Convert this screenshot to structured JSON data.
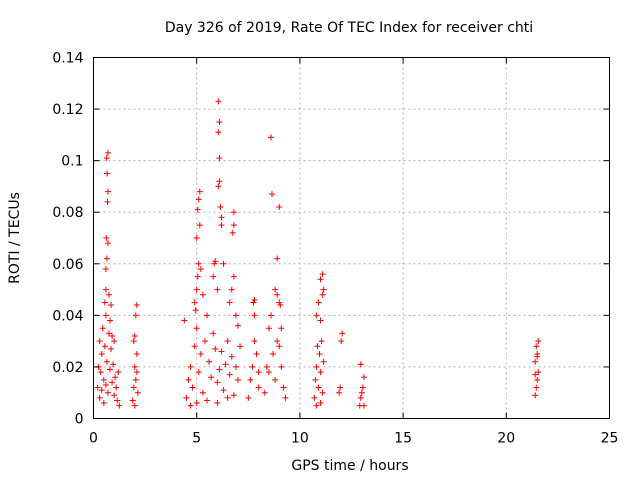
{
  "chart_data": {
    "type": "scatter",
    "title": "Day 326 of 2019, Rate Of TEC Index for receiver chti",
    "xlabel": "GPS time / hours",
    "ylabel": "ROTI / TECUs",
    "xlim": [
      0,
      25
    ],
    "ylim": [
      0,
      0.14
    ],
    "xticks": [
      0,
      5,
      10,
      15,
      20,
      25
    ],
    "xtick_labels": [
      "0",
      "5",
      "10",
      "15",
      "20",
      "25"
    ],
    "yticks": [
      0,
      0.02,
      0.04,
      0.06,
      0.08,
      0.1,
      0.12,
      0.14
    ],
    "ytick_labels": [
      "0",
      "0.02",
      "0.04",
      "0.06",
      "0.08",
      "0.1",
      "0.12",
      "0.14"
    ],
    "grid": true,
    "marker": "plus",
    "color": "#ff0000",
    "series": [
      {
        "points": [
          [
            0.2,
            0.012
          ],
          [
            0.25,
            0.02
          ],
          [
            0.3,
            0.03
          ],
          [
            0.35,
            0.018
          ],
          [
            0.4,
            0.025
          ],
          [
            0.45,
            0.035
          ],
          [
            0.5,
            0.015
          ],
          [
            0.55,
            0.028
          ],
          [
            0.6,
            0.04
          ],
          [
            0.65,
            0.022
          ],
          [
            0.7,
            0.01
          ],
          [
            0.75,
            0.033
          ],
          [
            0.8,
            0.019
          ],
          [
            0.85,
            0.027
          ],
          [
            0.9,
            0.014
          ],
          [
            0.95,
            0.021
          ],
          [
            1.0,
            0.009
          ],
          [
            1.05,
            0.016
          ],
          [
            1.1,
            0.012
          ],
          [
            1.15,
            0.007
          ],
          [
            1.2,
            0.018
          ],
          [
            1.25,
            0.005
          ],
          [
            0.3,
            0.008
          ],
          [
            0.4,
            0.011
          ],
          [
            0.5,
            0.006
          ],
          [
            0.6,
            0.013
          ],
          [
            0.55,
            0.045
          ],
          [
            0.6,
            0.05
          ],
          [
            0.6,
            0.058
          ],
          [
            0.65,
            0.062
          ],
          [
            0.7,
            0.068
          ],
          [
            0.62,
            0.07
          ],
          [
            0.68,
            0.084
          ],
          [
            0.7,
            0.088
          ],
          [
            0.66,
            0.095
          ],
          [
            0.64,
            0.101
          ],
          [
            0.7,
            0.103
          ],
          [
            0.8,
            0.038
          ],
          [
            0.85,
            0.044
          ],
          [
            0.9,
            0.032
          ],
          [
            1.0,
            0.03
          ],
          [
            0.75,
            0.048
          ],
          [
            1.9,
            0.007
          ],
          [
            1.95,
            0.012
          ],
          [
            2.0,
            0.02
          ],
          [
            2.05,
            0.015
          ],
          [
            2.1,
            0.025
          ],
          [
            2.15,
            0.01
          ],
          [
            2.0,
            0.032
          ],
          [
            2.05,
            0.04
          ],
          [
            2.1,
            0.044
          ],
          [
            1.95,
            0.03
          ],
          [
            2.1,
            0.018
          ],
          [
            2.0,
            0.005
          ],
          [
            4.4,
            0.038
          ],
          [
            4.5,
            0.008
          ],
          [
            4.6,
            0.015
          ],
          [
            4.7,
            0.02
          ],
          [
            4.8,
            0.012
          ],
          [
            4.9,
            0.028
          ],
          [
            5.0,
            0.035
          ],
          [
            5.1,
            0.018
          ],
          [
            5.2,
            0.025
          ],
          [
            5.3,
            0.01
          ],
          [
            5.4,
            0.03
          ],
          [
            5.5,
            0.04
          ],
          [
            5.6,
            0.022
          ],
          [
            5.7,
            0.016
          ],
          [
            5.8,
            0.033
          ],
          [
            5.9,
            0.027
          ],
          [
            6.0,
            0.014
          ],
          [
            6.1,
            0.019
          ],
          [
            6.2,
            0.026
          ],
          [
            6.3,
            0.011
          ],
          [
            6.4,
            0.021
          ],
          [
            6.5,
            0.03
          ],
          [
            6.6,
            0.017
          ],
          [
            6.7,
            0.024
          ],
          [
            6.8,
            0.009
          ],
          [
            6.9,
            0.02
          ],
          [
            7.0,
            0.015
          ],
          [
            4.7,
            0.005
          ],
          [
            5.0,
            0.006
          ],
          [
            5.5,
            0.007
          ],
          [
            6.0,
            0.006
          ],
          [
            6.5,
            0.008
          ],
          [
            4.9,
            0.045
          ],
          [
            5.0,
            0.05
          ],
          [
            5.05,
            0.055
          ],
          [
            5.1,
            0.06
          ],
          [
            5.0,
            0.07
          ],
          [
            5.05,
            0.081
          ],
          [
            5.1,
            0.085
          ],
          [
            5.15,
            0.088
          ],
          [
            5.2,
            0.058
          ],
          [
            5.3,
            0.048
          ],
          [
            4.95,
            0.042
          ],
          [
            5.15,
            0.075
          ],
          [
            5.8,
            0.055
          ],
          [
            5.85,
            0.06
          ],
          [
            5.9,
            0.061
          ],
          [
            6.0,
            0.05
          ],
          [
            6.05,
            0.09
          ],
          [
            6.1,
            0.092
          ],
          [
            6.15,
            0.082
          ],
          [
            6.2,
            0.078
          ],
          [
            6.1,
            0.101
          ],
          [
            6.05,
            0.111
          ],
          [
            6.1,
            0.115
          ],
          [
            6.05,
            0.123
          ],
          [
            6.2,
            0.075
          ],
          [
            6.3,
            0.06
          ],
          [
            6.6,
            0.045
          ],
          [
            6.7,
            0.05
          ],
          [
            6.8,
            0.055
          ],
          [
            6.75,
            0.072
          ],
          [
            6.8,
            0.075
          ],
          [
            6.8,
            0.08
          ],
          [
            6.9,
            0.04
          ],
          [
            7.0,
            0.036
          ],
          [
            7.1,
            0.028
          ],
          [
            7.5,
            0.008
          ],
          [
            7.6,
            0.015
          ],
          [
            7.7,
            0.02
          ],
          [
            7.8,
            0.03
          ],
          [
            7.9,
            0.025
          ],
          [
            8.0,
            0.012
          ],
          [
            7.8,
            0.04
          ],
          [
            7.75,
            0.045
          ],
          [
            7.8,
            0.046
          ],
          [
            8.0,
            0.018
          ],
          [
            8.3,
            0.01
          ],
          [
            8.4,
            0.02
          ],
          [
            8.5,
            0.035
          ],
          [
            8.6,
            0.04
          ],
          [
            8.7,
            0.025
          ],
          [
            8.8,
            0.015
          ],
          [
            8.9,
            0.03
          ],
          [
            9.0,
            0.045
          ],
          [
            9.1,
            0.02
          ],
          [
            9.2,
            0.012
          ],
          [
            9.3,
            0.008
          ],
          [
            8.5,
            0.018
          ],
          [
            9.0,
            0.028
          ],
          [
            8.6,
            0.109
          ],
          [
            8.65,
            0.087
          ],
          [
            9.0,
            0.082
          ],
          [
            8.9,
            0.062
          ],
          [
            8.8,
            0.05
          ],
          [
            8.9,
            0.048
          ],
          [
            9.05,
            0.044
          ],
          [
            9.1,
            0.035
          ],
          [
            10.7,
            0.008
          ],
          [
            10.75,
            0.015
          ],
          [
            10.8,
            0.02
          ],
          [
            10.85,
            0.028
          ],
          [
            10.9,
            0.012
          ],
          [
            10.95,
            0.025
          ],
          [
            11.0,
            0.018
          ],
          [
            11.05,
            0.03
          ],
          [
            11.1,
            0.01
          ],
          [
            11.15,
            0.022
          ],
          [
            10.8,
            0.005
          ],
          [
            11.0,
            0.006
          ],
          [
            10.8,
            0.04
          ],
          [
            10.9,
            0.045
          ],
          [
            11.0,
            0.054
          ],
          [
            11.1,
            0.056
          ],
          [
            11.15,
            0.05
          ],
          [
            11.0,
            0.038
          ],
          [
            11.1,
            0.048
          ],
          [
            11.9,
            0.01
          ],
          [
            11.95,
            0.012
          ],
          [
            12.0,
            0.03
          ],
          [
            12.05,
            0.033
          ],
          [
            12.9,
            0.005
          ],
          [
            12.95,
            0.008
          ],
          [
            13.0,
            0.01
          ],
          [
            13.05,
            0.012
          ],
          [
            13.1,
            0.016
          ],
          [
            12.95,
            0.021
          ],
          [
            13.1,
            0.005
          ],
          [
            21.4,
            0.009
          ],
          [
            21.45,
            0.012
          ],
          [
            21.5,
            0.015
          ],
          [
            21.55,
            0.018
          ],
          [
            21.4,
            0.022
          ],
          [
            21.5,
            0.025
          ],
          [
            21.45,
            0.028
          ],
          [
            21.55,
            0.03
          ],
          [
            21.5,
            0.024
          ],
          [
            21.4,
            0.017
          ]
        ]
      }
    ]
  }
}
